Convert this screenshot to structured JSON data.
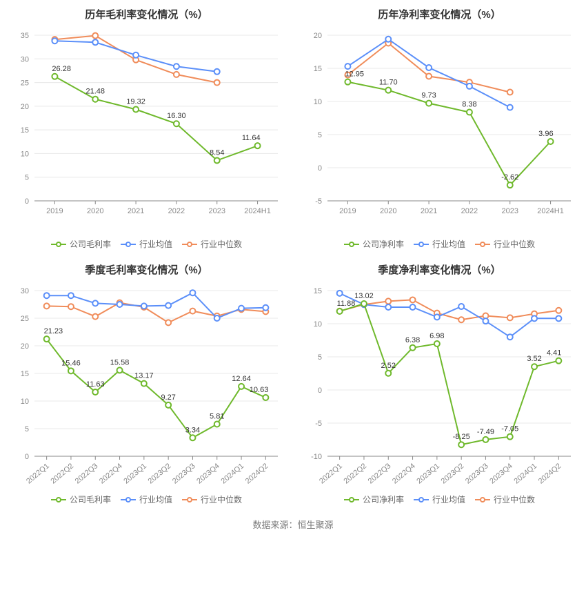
{
  "source_label": "数据来源：恒生聚源",
  "colors": {
    "company": "#6fb92c",
    "industry_avg": "#5b8ff9",
    "industry_median": "#f08c5a",
    "grid": "#e8e8e8",
    "axis": "#888888",
    "text": "#333333",
    "tick": "#888888",
    "background": "#ffffff"
  },
  "marker": {
    "radius": 4,
    "stroke_width": 2
  },
  "line_width": 2,
  "title_fontsize": 15,
  "tick_fontsize": 11,
  "panels": [
    {
      "key": "annual_gross",
      "title": "历年毛利率变化情况（%）",
      "categories": [
        "2019",
        "2020",
        "2021",
        "2022",
        "2023",
        "2024H1"
      ],
      "x_rotate": 0,
      "ylim": [
        0,
        35
      ],
      "ytick_step": 5,
      "series": [
        {
          "name": "公司毛利率",
          "color_key": "company",
          "values": [
            26.28,
            21.48,
            19.32,
            16.3,
            8.54,
            11.64
          ],
          "show_labels": true
        },
        {
          "name": "行业均值",
          "color_key": "industry_avg",
          "values": [
            33.8,
            33.5,
            30.8,
            28.4,
            27.3,
            null
          ],
          "show_labels": false
        },
        {
          "name": "行业中位数",
          "color_key": "industry_median",
          "values": [
            34.1,
            34.9,
            29.8,
            26.7,
            25.0,
            null
          ],
          "show_labels": false
        }
      ]
    },
    {
      "key": "annual_net",
      "title": "历年净利率变化情况（%）",
      "categories": [
        "2019",
        "2020",
        "2021",
        "2022",
        "2023",
        "2024H1"
      ],
      "x_rotate": 0,
      "ylim": [
        -5,
        20
      ],
      "ytick_step": 5,
      "series": [
        {
          "name": "公司净利率",
          "color_key": "company",
          "values": [
            12.95,
            11.7,
            9.73,
            8.38,
            -2.62,
            3.96
          ],
          "show_labels": true
        },
        {
          "name": "行业均值",
          "color_key": "industry_avg",
          "values": [
            15.3,
            19.4,
            15.1,
            12.3,
            9.1,
            null
          ],
          "show_labels": false
        },
        {
          "name": "行业中位数",
          "color_key": "industry_median",
          "values": [
            14.0,
            18.8,
            13.8,
            12.9,
            11.4,
            null
          ],
          "show_labels": false
        }
      ]
    },
    {
      "key": "quarter_gross",
      "title": "季度毛利率变化情况（%）",
      "categories": [
        "2022Q1",
        "2022Q2",
        "2022Q3",
        "2022Q4",
        "2023Q1",
        "2023Q2",
        "2023Q3",
        "2023Q4",
        "2024Q1",
        "2024Q2"
      ],
      "x_rotate": -40,
      "ylim": [
        0,
        30
      ],
      "ytick_step": 5,
      "series": [
        {
          "name": "公司毛利率",
          "color_key": "company",
          "values": [
            21.23,
            15.46,
            11.63,
            15.58,
            13.17,
            9.27,
            3.34,
            5.81,
            12.64,
            10.63
          ],
          "show_labels": true
        },
        {
          "name": "行业均值",
          "color_key": "industry_avg",
          "values": [
            29.1,
            29.1,
            27.7,
            27.5,
            27.2,
            27.3,
            29.6,
            25.0,
            26.8,
            26.9
          ],
          "show_labels": false
        },
        {
          "name": "行业中位数",
          "color_key": "industry_median",
          "values": [
            27.2,
            27.1,
            25.3,
            27.8,
            27.0,
            24.2,
            26.3,
            25.4,
            26.6,
            26.2
          ],
          "show_labels": false
        }
      ]
    },
    {
      "key": "quarter_net",
      "title": "季度净利率变化情况（%）",
      "categories": [
        "2022Q1",
        "2022Q2",
        "2022Q3",
        "2022Q4",
        "2023Q1",
        "2023Q2",
        "2023Q3",
        "2023Q4",
        "2024Q1",
        "2024Q2"
      ],
      "x_rotate": -40,
      "ylim": [
        -10,
        15
      ],
      "ytick_step": 5,
      "series": [
        {
          "name": "公司净利率",
          "color_key": "company",
          "values": [
            11.88,
            13.02,
            2.52,
            6.38,
            6.98,
            -8.25,
            -7.49,
            -7.05,
            3.52,
            4.41
          ],
          "show_labels": true
        },
        {
          "name": "行业均值",
          "color_key": "industry_avg",
          "values": [
            14.6,
            12.9,
            12.5,
            12.5,
            11.0,
            12.6,
            10.4,
            8.0,
            10.8,
            10.8
          ],
          "show_labels": false
        },
        {
          "name": "行业中位数",
          "color_key": "industry_median",
          "values": [
            11.9,
            12.9,
            13.4,
            13.6,
            11.6,
            10.6,
            11.2,
            10.9,
            11.5,
            12.0
          ],
          "show_labels": false
        }
      ]
    }
  ]
}
